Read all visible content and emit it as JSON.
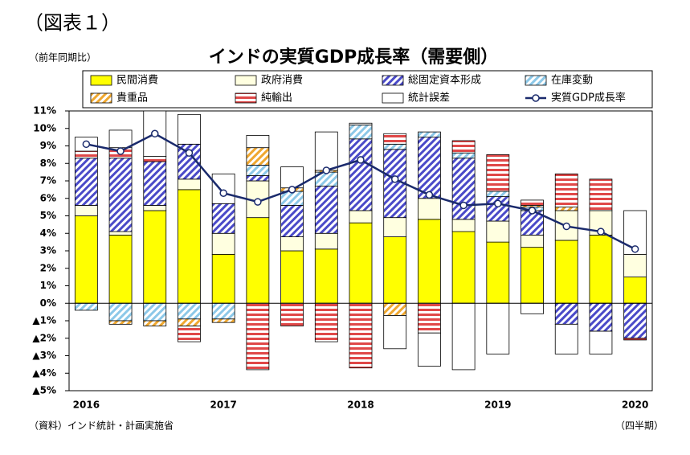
{
  "chart_data": {
    "type": "bar",
    "stacked": true,
    "figure_label": "（図表１）",
    "title": "インドの実質GDP成長率（需要側）",
    "unit_note": "（前年同期比）",
    "source": "（資料）インド統計・計画実施省",
    "x_label": "（四半期）",
    "categories": [
      "2016",
      null,
      null,
      null,
      "2017",
      null,
      null,
      null,
      "2018",
      null,
      null,
      null,
      "2019",
      null,
      null,
      null,
      "2020"
    ],
    "ylim": [
      -5,
      11
    ],
    "yticks": [
      {
        "value": 11,
        "label": "11%"
      },
      {
        "value": 10,
        "label": "10%"
      },
      {
        "value": 9,
        "label": "9%"
      },
      {
        "value": 8,
        "label": "8%"
      },
      {
        "value": 7,
        "label": "7%"
      },
      {
        "value": 6,
        "label": "6%"
      },
      {
        "value": 5,
        "label": "5%"
      },
      {
        "value": 4,
        "label": "4%"
      },
      {
        "value": 3,
        "label": "3%"
      },
      {
        "value": 2,
        "label": "2%"
      },
      {
        "value": 1,
        "label": "1%"
      },
      {
        "value": 0,
        "label": "0%"
      },
      {
        "value": -1,
        "label": "▲1%"
      },
      {
        "value": -2,
        "label": "▲2%"
      },
      {
        "value": -3,
        "label": "▲3%"
      },
      {
        "value": -4,
        "label": "▲4%"
      },
      {
        "value": -5,
        "label": "▲5%"
      }
    ],
    "series": [
      {
        "name": "民間消費",
        "color": "#ffff00",
        "values": [
          5.0,
          3.9,
          5.3,
          6.5,
          2.8,
          4.9,
          3.0,
          3.1,
          4.6,
          3.8,
          4.8,
          4.1,
          3.5,
          3.2,
          3.6,
          3.9,
          1.5
        ]
      },
      {
        "name": "政府消費",
        "color": "#ffffe0",
        "values": [
          0.6,
          0.2,
          0.3,
          0.6,
          1.2,
          2.1,
          0.8,
          0.9,
          0.7,
          1.1,
          1.2,
          0.7,
          1.2,
          0.7,
          1.7,
          1.4,
          1.3
        ]
      },
      {
        "name": "総固定資本形成",
        "color": "#4a4ac8",
        "pattern": "diagonal",
        "values": [
          2.7,
          4.2,
          2.5,
          2.0,
          1.7,
          0.3,
          1.8,
          2.7,
          4.1,
          3.9,
          3.5,
          3.5,
          1.4,
          1.4,
          -1.2,
          -1.6,
          -2.0
        ]
      },
      {
        "name": "在庫変動",
        "color": "#8cc8e8",
        "pattern": "diagonal",
        "values": [
          -0.4,
          -1.0,
          -1.0,
          -0.9,
          -0.9,
          0.6,
          0.8,
          0.8,
          0.8,
          0.3,
          0.3,
          0.3,
          0.3,
          0.2,
          0,
          0,
          0
        ]
      },
      {
        "name": "貴重品",
        "color": "#f0a830",
        "pattern": "diagonal",
        "values": [
          0,
          -0.2,
          -0.3,
          -0.4,
          -0.2,
          1.0,
          0.2,
          0.1,
          0,
          -0.7,
          0,
          0,
          0,
          0.1,
          0.2,
          0,
          0
        ]
      },
      {
        "name": "純輸出",
        "color": "#e04848",
        "pattern": "horizontal",
        "values": [
          0.4,
          0.6,
          0.3,
          -0.9,
          0,
          -3.8,
          -1.3,
          -2.2,
          -3.7,
          0.6,
          -1.7,
          0.7,
          2.1,
          0.3,
          1.9,
          1.8,
          -0.1
        ]
      },
      {
        "name": "統計誤差",
        "color": "#ffffff",
        "values": [
          0.8,
          1.0,
          2.6,
          1.7,
          1.7,
          0.7,
          1.2,
          2.2,
          0.1,
          -1.9,
          -1.9,
          -3.8,
          -2.9,
          -0.6,
          -1.7,
          -1.3,
          2.5
        ]
      },
      {
        "name": "実質GDP成長率",
        "type": "line",
        "color": "#1a2a6c",
        "values": [
          9.1,
          8.7,
          9.7,
          8.6,
          6.3,
          5.8,
          6.5,
          7.6,
          8.2,
          7.1,
          6.2,
          5.6,
          5.7,
          5.3,
          4.4,
          4.1,
          3.1
        ]
      }
    ]
  }
}
